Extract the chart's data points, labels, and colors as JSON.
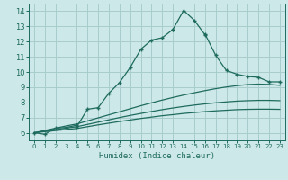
{
  "xlabel": "Humidex (Indice chaleur)",
  "background_color": "#cde8e8",
  "grid_color": "#a8cccc",
  "line_color": "#1e6b5e",
  "xlim": [
    -0.5,
    23.5
  ],
  "ylim": [
    5.5,
    14.5
  ],
  "xticks": [
    0,
    1,
    2,
    3,
    4,
    5,
    6,
    7,
    8,
    9,
    10,
    11,
    12,
    13,
    14,
    15,
    16,
    17,
    18,
    19,
    20,
    21,
    22,
    23
  ],
  "yticks": [
    6,
    7,
    8,
    9,
    10,
    11,
    12,
    13,
    14
  ],
  "series_main_x": [
    0,
    1,
    2,
    3,
    4,
    4,
    5,
    6,
    7,
    8,
    9,
    10,
    11,
    12,
    13,
    13,
    14,
    15,
    16,
    16,
    17,
    18,
    19,
    20,
    21,
    22,
    23
  ],
  "series_main_y": [
    6.0,
    5.9,
    6.3,
    6.35,
    6.5,
    6.4,
    7.55,
    7.65,
    8.6,
    9.3,
    10.3,
    11.5,
    12.1,
    12.25,
    12.8,
    12.8,
    14.05,
    13.4,
    12.45,
    12.5,
    11.1,
    10.1,
    9.85,
    9.7,
    9.65,
    9.35,
    9.35
  ],
  "series_upper_x": [
    0,
    1,
    2,
    3,
    4,
    5,
    6,
    7,
    8,
    9,
    10,
    11,
    12,
    13,
    14,
    15,
    16,
    17,
    18,
    19,
    20,
    21,
    22,
    23
  ],
  "series_upper_y": [
    6.0,
    6.15,
    6.3,
    6.45,
    6.58,
    6.78,
    6.98,
    7.18,
    7.38,
    7.58,
    7.78,
    7.97,
    8.15,
    8.32,
    8.48,
    8.63,
    8.77,
    8.9,
    9.01,
    9.1,
    9.17,
    9.2,
    9.18,
    9.12
  ],
  "series_mid_x": [
    0,
    1,
    2,
    3,
    4,
    5,
    6,
    7,
    8,
    9,
    10,
    11,
    12,
    13,
    14,
    15,
    16,
    17,
    18,
    19,
    20,
    21,
    22,
    23
  ],
  "series_mid_y": [
    6.0,
    6.1,
    6.2,
    6.3,
    6.4,
    6.55,
    6.7,
    6.85,
    7.0,
    7.14,
    7.27,
    7.4,
    7.52,
    7.63,
    7.73,
    7.82,
    7.9,
    7.97,
    8.03,
    8.08,
    8.11,
    8.13,
    8.13,
    8.11
  ],
  "series_low_x": [
    0,
    1,
    2,
    3,
    4,
    5,
    6,
    7,
    8,
    9,
    10,
    11,
    12,
    13,
    14,
    15,
    16,
    17,
    18,
    19,
    20,
    21,
    22,
    23
  ],
  "series_low_y": [
    6.0,
    6.07,
    6.14,
    6.21,
    6.28,
    6.4,
    6.52,
    6.63,
    6.74,
    6.84,
    6.94,
    7.03,
    7.12,
    7.19,
    7.27,
    7.33,
    7.39,
    7.44,
    7.48,
    7.52,
    7.54,
    7.55,
    7.55,
    7.54
  ]
}
